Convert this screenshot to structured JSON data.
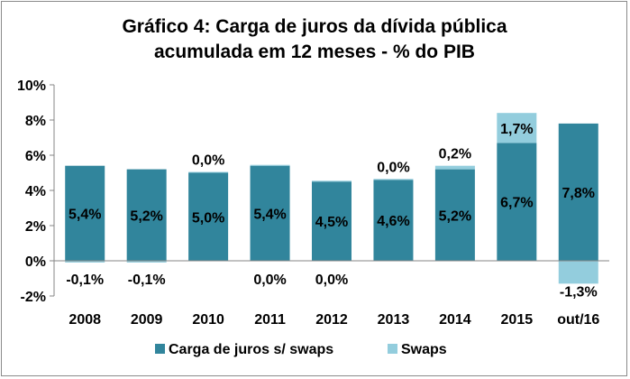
{
  "chart_data": {
    "type": "bar",
    "stacked": true,
    "title": [
      "Gráfico 4: Carga de juros da dívida pública",
      "acumulada em 12 meses - %  do PIB"
    ],
    "xlabel": "",
    "ylabel": "",
    "ylim": [
      -2,
      10
    ],
    "yticks": [
      -2,
      0,
      2,
      4,
      6,
      8,
      10
    ],
    "ytick_labels": [
      "-2%",
      "0%",
      "2%",
      "4%",
      "6%",
      "8%",
      "10%"
    ],
    "categories": [
      "2008",
      "2009",
      "2010",
      "2011",
      "2012",
      "2013",
      "2014",
      "2015",
      "out/16"
    ],
    "series": [
      {
        "name": "Carga de juros s/ swaps",
        "color": "#31859c",
        "values": [
          5.4,
          5.2,
          5.0,
          5.4,
          4.5,
          4.6,
          5.2,
          6.7,
          7.8
        ],
        "labels": [
          "5,4%",
          "5,2%",
          "5,0%",
          "5,4%",
          "4,5%",
          "4,6%",
          "5,2%",
          "6,7%",
          "7,8%"
        ]
      },
      {
        "name": "Swaps",
        "color": "#93cddd",
        "values": [
          -0.1,
          -0.1,
          0.0,
          0.0,
          0.0,
          0.0,
          0.2,
          1.7,
          -1.3
        ],
        "labels": [
          "-0,1%",
          "-0,1%",
          "0,0%",
          "0,0%",
          "0,0%",
          "0,0%",
          "0,2%",
          "1,7%",
          "-1,3%"
        ]
      }
    ],
    "grid": false,
    "legend_position": "bottom"
  }
}
